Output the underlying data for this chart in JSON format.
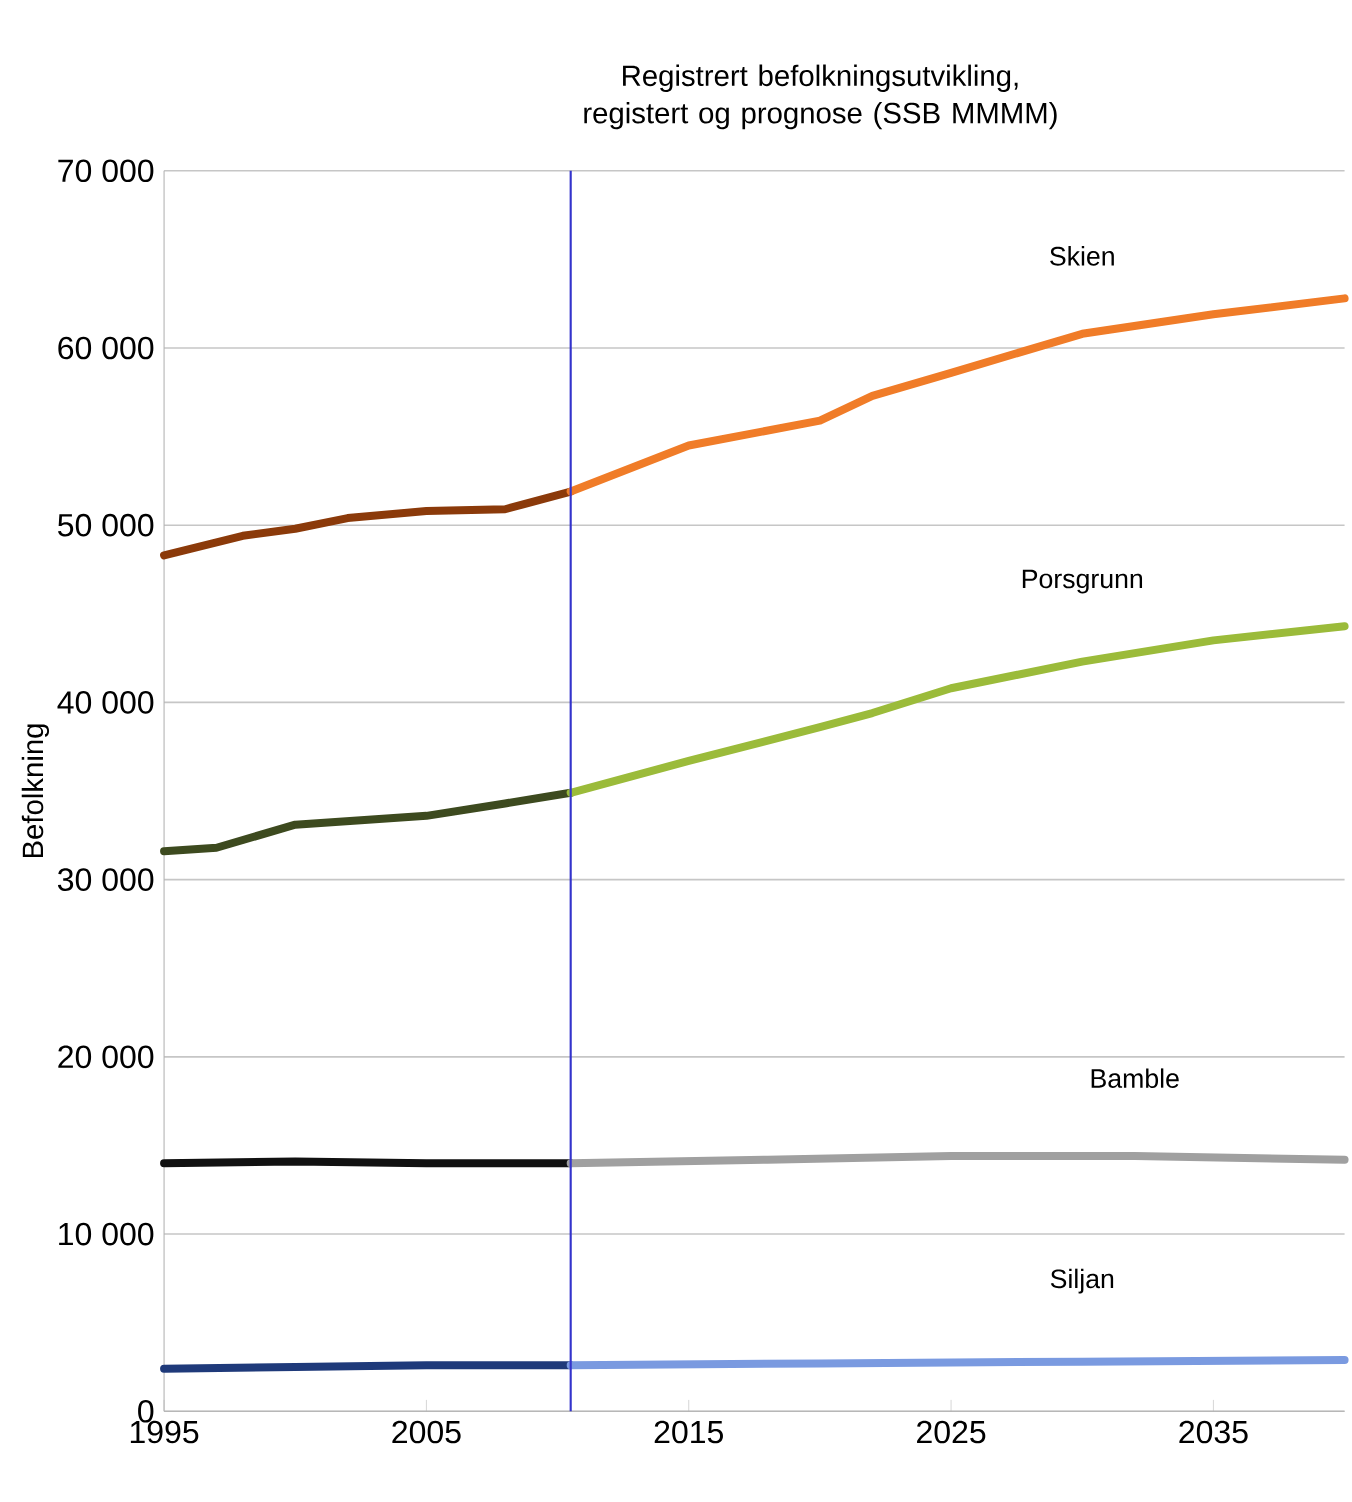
{
  "chart_data": {
    "type": "line",
    "title": "Registrert befolkningsutvikling, registert og prognose (SSB MMMM)",
    "ylabel": "Befolkning",
    "xlim": [
      1995,
      2040
    ],
    "xticks": [
      1995,
      2005,
      2015,
      2025,
      2035
    ],
    "ylim": [
      0,
      70000
    ],
    "yticks": [
      {
        "value": 0,
        "label": "0"
      },
      {
        "value": 10000,
        "label": "10 000"
      },
      {
        "value": 20000,
        "label": "20 000"
      },
      {
        "value": 30000,
        "label": "30 000"
      },
      {
        "value": 40000,
        "label": "40 000"
      },
      {
        "value": 50000,
        "label": "50 000"
      },
      {
        "value": 60000,
        "label": "60 000"
      },
      {
        "value": 70000,
        "label": "70 000"
      }
    ],
    "grid": "y",
    "marker": "none",
    "line_style": "solid",
    "ref_lines": [
      {
        "axis": "x",
        "value": 2010.5,
        "color": "#3333cc"
      }
    ],
    "series": [
      {
        "color": "#8b3a0a",
        "x": [
          1995,
          1998,
          2000,
          2002,
          2005,
          2008,
          2010.5
        ],
        "values": [
          48300,
          49400,
          49800,
          50400,
          50800,
          50900,
          51900
        ]
      },
      {
        "name": "Skien",
        "color": "#f07c28",
        "x": [
          2010.5,
          2015,
          2020,
          2022,
          2025,
          2030,
          2035,
          2040
        ],
        "values": [
          51900,
          54500,
          55900,
          57300,
          58600,
          60800,
          61900,
          62800
        ]
      },
      {
        "color": "#3d4a1f",
        "x": [
          1995,
          1997,
          2000,
          2005,
          2008,
          2010.5
        ],
        "values": [
          31600,
          31800,
          33100,
          33600,
          34300,
          34900
        ]
      },
      {
        "name": "Porsgrunn",
        "color": "#9bbb3a",
        "x": [
          2010.5,
          2015,
          2020,
          2022,
          2025,
          2030,
          2035,
          2040
        ],
        "values": [
          34900,
          36700,
          38600,
          39400,
          40800,
          42300,
          43500,
          44300
        ]
      },
      {
        "color": "#111111",
        "x": [
          1995,
          2000,
          2005,
          2010.5
        ],
        "values": [
          14000,
          14100,
          14000,
          14000
        ]
      },
      {
        "name": "Bamble",
        "color": "#a0a0a0",
        "x": [
          2010.5,
          2018,
          2025,
          2032,
          2040
        ],
        "values": [
          14000,
          14200,
          14400,
          14400,
          14200
        ]
      },
      {
        "color": "#1f3a7a",
        "x": [
          1995,
          2000,
          2005,
          2010.5
        ],
        "values": [
          2400,
          2500,
          2600,
          2600
        ]
      },
      {
        "name": "Siljan",
        "color": "#7a9ae0",
        "x": [
          2010.5,
          2020,
          2030,
          2040
        ],
        "values": [
          2600,
          2700,
          2800,
          2900
        ]
      }
    ]
  }
}
